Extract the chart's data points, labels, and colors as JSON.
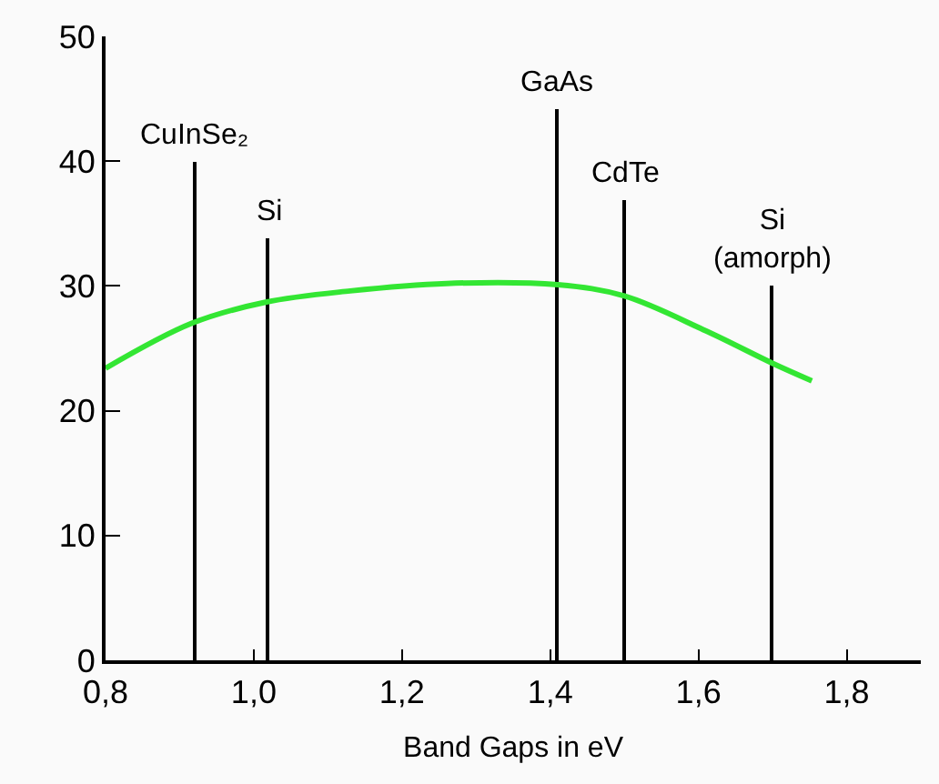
{
  "chart_data": {
    "type": "line",
    "xlabel": "Band Gaps in eV",
    "xlim": [
      0.8,
      1.9
    ],
    "ylim": [
      0,
      50
    ],
    "xticks": [
      {
        "value": 0.8,
        "label": "0,8"
      },
      {
        "value": 1.0,
        "label": "1,0"
      },
      {
        "value": 1.2,
        "label": "1,2"
      },
      {
        "value": 1.4,
        "label": "1,4"
      },
      {
        "value": 1.6,
        "label": "1,6"
      },
      {
        "value": 1.8,
        "label": "1,8"
      }
    ],
    "yticks": [
      0,
      10,
      20,
      30,
      40,
      50
    ],
    "series": [
      {
        "type": "bar",
        "color": "#000000",
        "x": [
          0.92,
          1.02,
          1.41,
          1.5,
          1.7
        ],
        "values": [
          40,
          33.8,
          44.2,
          36.9,
          30.1
        ]
      },
      {
        "color": "#33e633",
        "x": [
          0.8,
          0.916,
          1.016,
          1.13,
          1.26,
          1.41,
          1.5,
          1.61,
          1.7,
          1.753
        ],
        "values": [
          23.4,
          27.0,
          28.7,
          29.6,
          30.2,
          30.1,
          29.2,
          26.4,
          23.8,
          22.4
        ]
      }
    ],
    "annotations": [
      {
        "text": "CuInSe₂",
        "x": 0.92,
        "y": 40
      },
      {
        "text": "Si",
        "x": 1.02,
        "y": 33.8
      },
      {
        "text": "GaAs",
        "x": 1.41,
        "y": 44.2
      },
      {
        "text": "CdTe",
        "x": 1.5,
        "y": 36.9
      },
      {
        "text": "Si\n(amorph)",
        "x": 1.7,
        "y": 30.1
      }
    ]
  }
}
